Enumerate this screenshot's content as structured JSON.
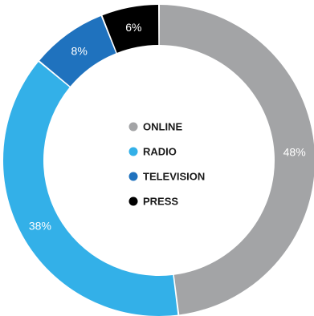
{
  "chart_data": {
    "type": "pie",
    "variant": "donut",
    "title": "",
    "series": [
      {
        "name": "ONLINE",
        "value": 48,
        "label": "48%",
        "color": "#a3a4a6"
      },
      {
        "name": "RADIO",
        "value": 38,
        "label": "38%",
        "color": "#33b0e8"
      },
      {
        "name": "TELEVISION",
        "value": 8,
        "label": "8%",
        "color": "#1f72be"
      },
      {
        "name": "PRESS",
        "value": 6,
        "label": "6%",
        "color": "#000000"
      }
    ],
    "legend": {
      "placement": "center",
      "entries": [
        "ONLINE",
        "RADIO",
        "TELEVISION",
        "PRESS"
      ]
    }
  }
}
